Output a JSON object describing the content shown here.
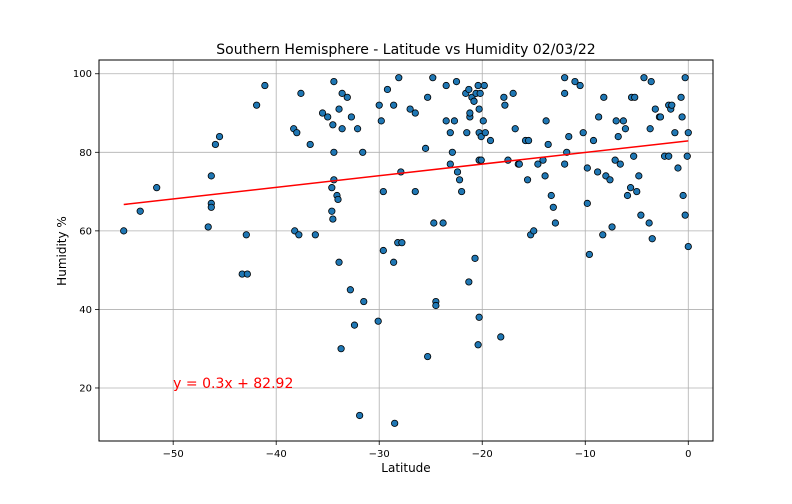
{
  "chart_data": {
    "type": "scatter",
    "title": "Southern Hemisphere - Latitude vs Humidity 02/03/22",
    "xlabel": "Latitude",
    "ylabel": "Humidity %",
    "xlim": [
      -57.2,
      2.4
    ],
    "ylim": [
      6.5,
      103.5
    ],
    "xticks": [
      -50,
      -40,
      -30,
      -20,
      -10,
      0
    ],
    "yticks": [
      20,
      40,
      60,
      80,
      100
    ],
    "grid": true,
    "point_color": "#1f77b4",
    "edge_color": "#000000",
    "regression": {
      "equation": "y = 0.3x + 82.92",
      "slope": 0.296,
      "intercept": 82.92,
      "x_range": [
        -54.8,
        0
      ],
      "color": "#ff0000",
      "label_position": [
        -50,
        20
      ]
    },
    "points": [
      [
        -54.8,
        60
      ],
      [
        -53.2,
        65
      ],
      [
        -51.6,
        71
      ],
      [
        -46.6,
        61
      ],
      [
        -46.3,
        74
      ],
      [
        -46.3,
        67
      ],
      [
        -46.3,
        66
      ],
      [
        -45.9,
        82
      ],
      [
        -45.5,
        84
      ],
      [
        -43.3,
        49
      ],
      [
        -42.9,
        59
      ],
      [
        -42.8,
        49
      ],
      [
        -41.9,
        92
      ],
      [
        -41.1,
        97
      ],
      [
        -38.3,
        86
      ],
      [
        -38.2,
        60
      ],
      [
        -38.0,
        85
      ],
      [
        -37.8,
        59
      ],
      [
        -37.6,
        95
      ],
      [
        -36.7,
        82
      ],
      [
        -36.2,
        59
      ],
      [
        -35.5,
        90
      ],
      [
        -35.0,
        89
      ],
      [
        -34.6,
        71
      ],
      [
        -34.6,
        65
      ],
      [
        -34.5,
        63
      ],
      [
        -34.5,
        87
      ],
      [
        -34.4,
        98
      ],
      [
        -34.4,
        80
      ],
      [
        -34.4,
        73
      ],
      [
        -34.1,
        69
      ],
      [
        -34.0,
        68
      ],
      [
        -33.9,
        91
      ],
      [
        -33.9,
        52
      ],
      [
        -33.7,
        30
      ],
      [
        -33.6,
        86
      ],
      [
        -33.6,
        95
      ],
      [
        -33.1,
        94
      ],
      [
        -32.8,
        45
      ],
      [
        -32.7,
        89
      ],
      [
        -32.4,
        36
      ],
      [
        -32.1,
        86
      ],
      [
        -31.9,
        13
      ],
      [
        -31.6,
        80
      ],
      [
        -31.5,
        42
      ],
      [
        -30.1,
        37
      ],
      [
        -30.0,
        92
      ],
      [
        -29.8,
        88
      ],
      [
        -29.6,
        70
      ],
      [
        -29.6,
        55
      ],
      [
        -29.2,
        96
      ],
      [
        -28.6,
        92
      ],
      [
        -28.6,
        52
      ],
      [
        -28.5,
        11
      ],
      [
        -28.2,
        57
      ],
      [
        -28.1,
        99
      ],
      [
        -27.9,
        75
      ],
      [
        -27.8,
        57
      ],
      [
        -27.0,
        91
      ],
      [
        -26.5,
        70
      ],
      [
        -26.5,
        90
      ],
      [
        -25.5,
        81
      ],
      [
        -25.3,
        28
      ],
      [
        -25.3,
        94
      ],
      [
        -24.8,
        99
      ],
      [
        -24.7,
        62
      ],
      [
        -24.5,
        42
      ],
      [
        -24.5,
        41
      ],
      [
        -23.8,
        62
      ],
      [
        -23.5,
        88
      ],
      [
        -23.5,
        97
      ],
      [
        -23.1,
        85
      ],
      [
        -23.1,
        77
      ],
      [
        -22.9,
        80
      ],
      [
        -22.7,
        88
      ],
      [
        -22.5,
        98
      ],
      [
        -22.4,
        75
      ],
      [
        -22.2,
        73
      ],
      [
        -22.0,
        70
      ],
      [
        -21.6,
        95
      ],
      [
        -21.5,
        85
      ],
      [
        -21.3,
        96
      ],
      [
        -21.3,
        47
      ],
      [
        -21.2,
        89
      ],
      [
        -21.2,
        90
      ],
      [
        -21.0,
        94
      ],
      [
        -20.8,
        93
      ],
      [
        -20.8,
        93
      ],
      [
        -20.7,
        53
      ],
      [
        -20.6,
        95
      ],
      [
        -20.4,
        97
      ],
      [
        -20.4,
        31
      ],
      [
        -20.3,
        38
      ],
      [
        -20.3,
        78
      ],
      [
        -20.3,
        85
      ],
      [
        -20.3,
        91
      ],
      [
        -20.2,
        95
      ],
      [
        -20.1,
        84
      ],
      [
        -20.1,
        78
      ],
      [
        -19.9,
        88
      ],
      [
        -19.8,
        97
      ],
      [
        -19.7,
        85
      ],
      [
        -19.2,
        83
      ],
      [
        -18.2,
        33
      ],
      [
        -17.9,
        94
      ],
      [
        -17.8,
        92
      ],
      [
        -17.5,
        78
      ],
      [
        -17.0,
        95
      ],
      [
        -16.8,
        86
      ],
      [
        -16.5,
        77
      ],
      [
        -16.4,
        77
      ],
      [
        -15.8,
        83
      ],
      [
        -15.6,
        73
      ],
      [
        -15.5,
        83
      ],
      [
        -15.3,
        59
      ],
      [
        -15.0,
        60
      ],
      [
        -14.6,
        77
      ],
      [
        -14.1,
        78
      ],
      [
        -13.9,
        74
      ],
      [
        -13.8,
        88
      ],
      [
        -13.6,
        82
      ],
      [
        -13.3,
        69
      ],
      [
        -13.1,
        66
      ],
      [
        -12.9,
        62
      ],
      [
        -12.0,
        99
      ],
      [
        -12.0,
        95
      ],
      [
        -12.0,
        77
      ],
      [
        -11.8,
        80
      ],
      [
        -11.6,
        84
      ],
      [
        -11.0,
        98
      ],
      [
        -10.5,
        97
      ],
      [
        -10.2,
        85
      ],
      [
        -9.8,
        67
      ],
      [
        -9.8,
        76
      ],
      [
        -9.6,
        54
      ],
      [
        -9.2,
        83
      ],
      [
        -8.8,
        75
      ],
      [
        -8.7,
        89
      ],
      [
        -8.3,
        59
      ],
      [
        -8.2,
        94
      ],
      [
        -8.0,
        74
      ],
      [
        -7.6,
        73
      ],
      [
        -7.4,
        61
      ],
      [
        -7.1,
        78
      ],
      [
        -7.0,
        88
      ],
      [
        -6.8,
        84
      ],
      [
        -6.6,
        77
      ],
      [
        -6.3,
        88
      ],
      [
        -6.1,
        86
      ],
      [
        -5.9,
        69
      ],
      [
        -5.6,
        71
      ],
      [
        -5.5,
        94
      ],
      [
        -5.3,
        79
      ],
      [
        -5.2,
        94
      ],
      [
        -5.0,
        70
      ],
      [
        -4.8,
        74
      ],
      [
        -4.6,
        64
      ],
      [
        -4.3,
        99
      ],
      [
        -3.8,
        62
      ],
      [
        -3.7,
        86
      ],
      [
        -3.6,
        98
      ],
      [
        -3.5,
        58
      ],
      [
        -3.2,
        91
      ],
      [
        -2.8,
        89
      ],
      [
        -2.7,
        89
      ],
      [
        -2.3,
        79
      ],
      [
        -1.9,
        92
      ],
      [
        -1.9,
        79
      ],
      [
        -1.7,
        91
      ],
      [
        -1.6,
        92
      ],
      [
        -1.3,
        85
      ],
      [
        -1.0,
        76
      ],
      [
        -0.7,
        94
      ],
      [
        -0.6,
        89
      ],
      [
        -0.5,
        69
      ],
      [
        -0.3,
        64
      ],
      [
        -0.3,
        99
      ],
      [
        -0.1,
        79
      ],
      [
        0.0,
        85
      ],
      [
        0.0,
        56
      ]
    ]
  }
}
